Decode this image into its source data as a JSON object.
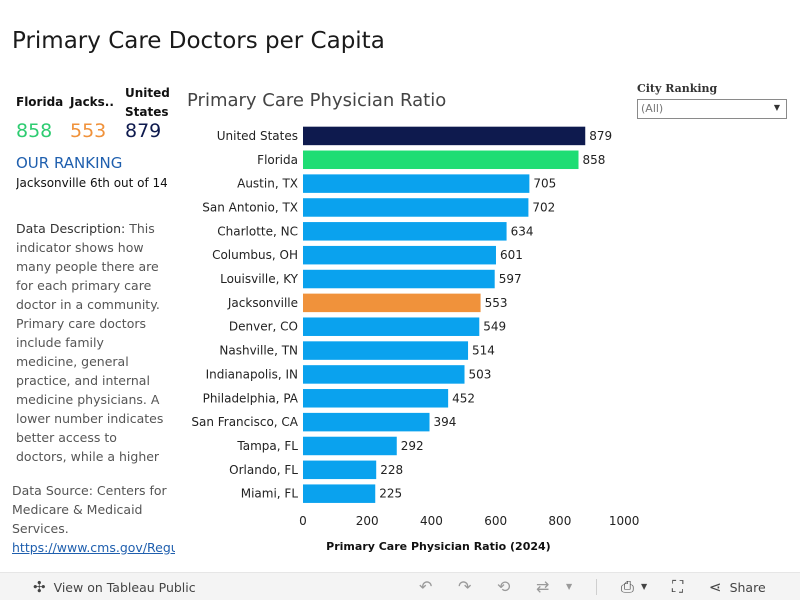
{
  "page": {
    "title": "Primary Care Doctors per Capita"
  },
  "kpis": [
    {
      "label": "Florida",
      "value": "858",
      "color": "#2ecc71"
    },
    {
      "label": "Jacks..",
      "value": "553",
      "color": "#f0923b"
    },
    {
      "label": "United States",
      "value": "879",
      "color": "#0e1a4e"
    }
  ],
  "ranking": {
    "heading": "OUR RANKING",
    "text": "Jacksonville 6th out of 14"
  },
  "description": {
    "label": "Data Description:",
    "text": " This indicator shows how many people there are for each primary care doctor in a community. Primary care doctors include family medicine, general practice, and internal medicine physicians. A lower number indicates better access to doctors, while a higher number indicat.."
  },
  "source": {
    "text": "Data Source: Centers for Medicare & Medicaid Services.",
    "link": "https://www.cms.gov/Regu"
  },
  "filter": {
    "label": "City  Ranking",
    "value": "(All)"
  },
  "chart_data": {
    "type": "bar",
    "orientation": "horizontal",
    "title": "Primary Care Physician Ratio",
    "xlabel": "Primary Care Physician Ratio (2024)",
    "ylabel": "",
    "xlim": [
      0,
      1000
    ],
    "xticks": [
      0,
      200,
      400,
      600,
      800,
      1000
    ],
    "grid": false,
    "categories": [
      "United States",
      "Florida",
      "Austin, TX",
      "San Antonio, TX",
      "Charlotte, NC",
      "Columbus, OH",
      "Louisville, KY",
      "Jacksonville",
      "Denver, CO",
      "Nashville, TN",
      "Indianapolis, IN",
      "Philadelphia, PA",
      "San Francisco, CA",
      "Tampa, FL",
      "Orlando, FL",
      "Miami, FL"
    ],
    "values": [
      879,
      858,
      705,
      702,
      634,
      601,
      597,
      553,
      549,
      514,
      503,
      452,
      394,
      292,
      228,
      225
    ],
    "colors": [
      "#0e1a4e",
      "#1fdd74",
      "#0aa2ee",
      "#0aa2ee",
      "#0aa2ee",
      "#0aa2ee",
      "#0aa2ee",
      "#f0923b",
      "#0aa2ee",
      "#0aa2ee",
      "#0aa2ee",
      "#0aa2ee",
      "#0aa2ee",
      "#0aa2ee",
      "#0aa2ee",
      "#0aa2ee"
    ]
  },
  "toolbar": {
    "view_label": "View on Tableau Public",
    "share_label": "Share",
    "tableau_icon": "tableau-logo-icon",
    "undo_icon": "undo-icon",
    "redo_icon": "redo-icon",
    "revert_icon": "revert-icon",
    "refresh_icon": "refresh-icon",
    "download_icon": "download-icon",
    "fullscreen_icon": "fullscreen-icon",
    "share_icon": "share-icon"
  }
}
